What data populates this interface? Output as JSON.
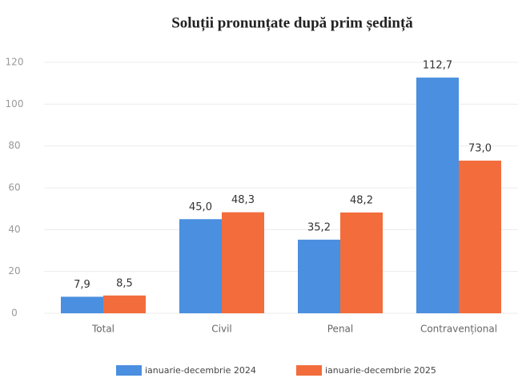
{
  "chart_data": {
    "type": "bar",
    "title": "Soluții pronunțate după prim ședință",
    "categories": [
      "Total",
      "Civil",
      "Penal",
      "Contravențional"
    ],
    "series": [
      {
        "name": "ianuarie-decembrie 2024",
        "color": "#4a8fe0",
        "values": [
          7.9,
          45.0,
          35.2,
          112.7
        ],
        "value_labels": [
          "7,9",
          "45,0",
          "35,2",
          "112,7"
        ]
      },
      {
        "name": "ianuarie-decembrie 2025",
        "color": "#f26c3c",
        "values": [
          8.5,
          48.3,
          48.2,
          73.0
        ],
        "value_labels": [
          "8,5",
          "48,3",
          "48,2",
          "73,0"
        ]
      }
    ],
    "ylim": [
      0,
      120
    ],
    "yticks": [
      0,
      20,
      40,
      60,
      80,
      100,
      120
    ],
    "grid": true,
    "legend": "bottom"
  }
}
